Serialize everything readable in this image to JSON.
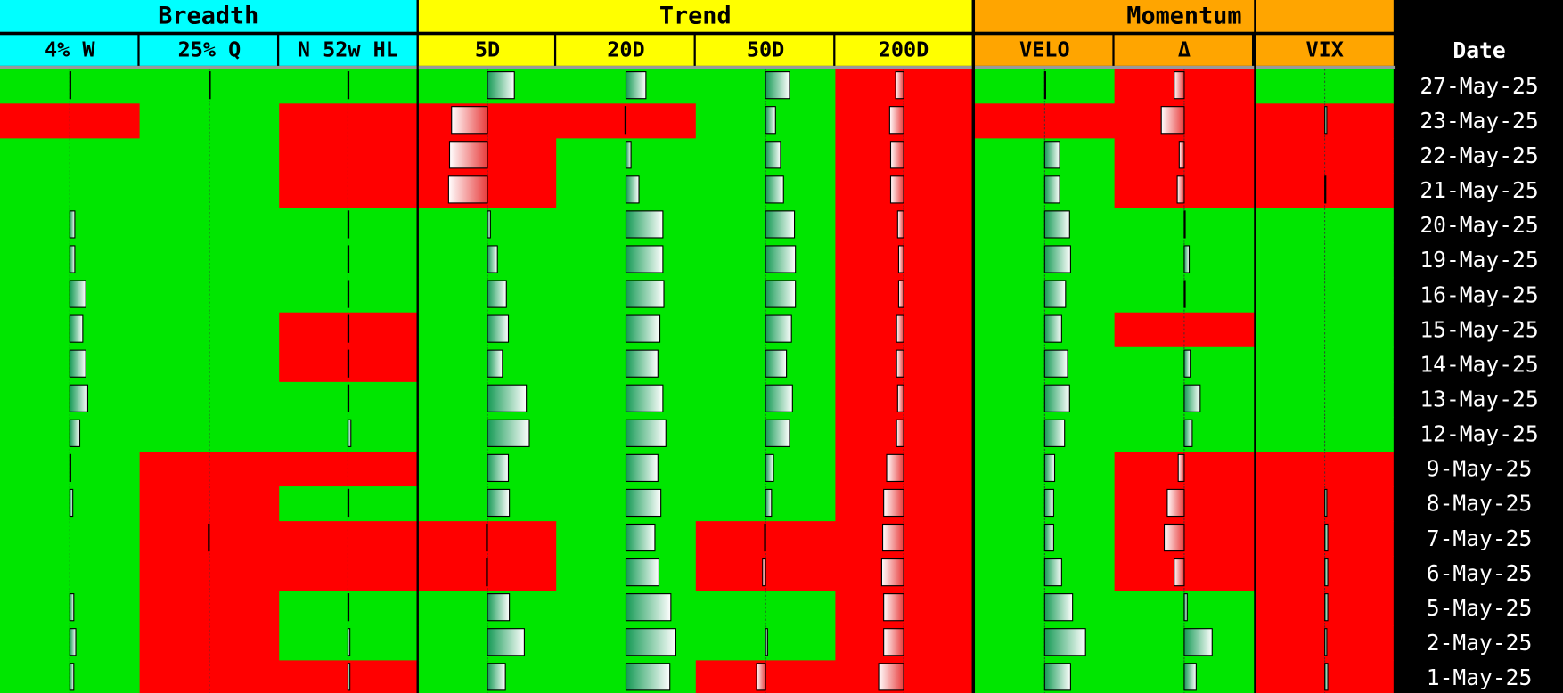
{
  "header": {
    "groups": [
      {
        "label": "Breadth",
        "color": "#00ffff",
        "columns": [
          "4% W",
          "25% Q",
          "N 52w HL"
        ]
      },
      {
        "label": "Trend",
        "color": "#ffff00",
        "columns": [
          "5D",
          "20D",
          "50D",
          "200D"
        ]
      },
      {
        "label": "Momentum",
        "color": "#ffa500",
        "columns": [
          "VELO",
          "Δ",
          "VIX"
        ]
      }
    ],
    "date_label": "Date"
  },
  "palette": {
    "g": "#00e600",
    "r": "#ff0000"
  },
  "rows": [
    {
      "date": "27-May-25",
      "fills": [
        "g",
        "g",
        "g",
        "g",
        "g",
        "g",
        "r",
        "g",
        "r",
        "g"
      ],
      "values": [
        1,
        1,
        1,
        27,
        20,
        24,
        -8,
        1,
        -10,
        0
      ]
    },
    {
      "date": "23-May-25",
      "fills": [
        "r",
        "g",
        "r",
        "r",
        "r",
        "g",
        "r",
        "r",
        "r",
        "r"
      ],
      "values": [
        0,
        0,
        0,
        -36,
        -1,
        10,
        -14,
        0,
        -23,
        2
      ]
    },
    {
      "date": "22-May-25",
      "fills": [
        "g",
        "g",
        "r",
        "r",
        "g",
        "g",
        "r",
        "g",
        "r",
        "r"
      ],
      "values": [
        0,
        0,
        0,
        -38,
        5,
        15,
        -13,
        15,
        -5,
        0
      ]
    },
    {
      "date": "21-May-25",
      "fills": [
        "g",
        "g",
        "r",
        "r",
        "g",
        "g",
        "r",
        "g",
        "r",
        "r"
      ],
      "values": [
        0,
        0,
        0,
        -39,
        13,
        18,
        -13,
        15,
        -7,
        1
      ]
    },
    {
      "date": "20-May-25",
      "fills": [
        "g",
        "g",
        "g",
        "g",
        "g",
        "g",
        "r",
        "g",
        "g",
        "g"
      ],
      "values": [
        5,
        0,
        1,
        3,
        37,
        29,
        -6,
        25,
        1,
        0
      ]
    },
    {
      "date": "19-May-25",
      "fills": [
        "g",
        "g",
        "g",
        "g",
        "g",
        "g",
        "r",
        "g",
        "g",
        "g"
      ],
      "values": [
        5,
        0,
        1,
        10,
        37,
        30,
        -5,
        26,
        5,
        0
      ]
    },
    {
      "date": "16-May-25",
      "fills": [
        "g",
        "g",
        "g",
        "g",
        "g",
        "g",
        "r",
        "g",
        "g",
        "g"
      ],
      "values": [
        16,
        0,
        1,
        19,
        38,
        30,
        -5,
        21,
        1,
        0
      ]
    },
    {
      "date": "15-May-25",
      "fills": [
        "g",
        "g",
        "r",
        "g",
        "g",
        "g",
        "r",
        "g",
        "r",
        "g"
      ],
      "values": [
        13,
        0,
        1,
        21,
        34,
        26,
        -7,
        17,
        0,
        0
      ]
    },
    {
      "date": "14-May-25",
      "fills": [
        "g",
        "g",
        "r",
        "g",
        "g",
        "g",
        "r",
        "g",
        "g",
        "g"
      ],
      "values": [
        16,
        0,
        1,
        15,
        32,
        21,
        -7,
        23,
        6,
        0
      ]
    },
    {
      "date": "13-May-25",
      "fills": [
        "g",
        "g",
        "g",
        "g",
        "g",
        "g",
        "r",
        "g",
        "g",
        "g"
      ],
      "values": [
        18,
        0,
        1,
        39,
        37,
        27,
        -6,
        25,
        16,
        0
      ]
    },
    {
      "date": "12-May-25",
      "fills": [
        "g",
        "g",
        "g",
        "g",
        "g",
        "g",
        "r",
        "g",
        "g",
        "g"
      ],
      "values": [
        10,
        0,
        3,
        42,
        40,
        24,
        -7,
        20,
        8,
        0
      ]
    },
    {
      "date": "9-May-25",
      "fills": [
        "g",
        "r",
        "r",
        "g",
        "g",
        "g",
        "r",
        "g",
        "r",
        "r"
      ],
      "values": [
        1,
        0,
        0,
        21,
        32,
        8,
        -17,
        10,
        -6,
        0
      ]
    },
    {
      "date": "8-May-25",
      "fills": [
        "g",
        "r",
        "g",
        "g",
        "g",
        "g",
        "r",
        "g",
        "r",
        "r"
      ],
      "values": [
        3,
        0,
        1,
        22,
        35,
        6,
        -20,
        9,
        -17,
        2
      ]
    },
    {
      "date": "7-May-25",
      "fills": [
        "g",
        "r",
        "r",
        "r",
        "g",
        "r",
        "r",
        "g",
        "r",
        "r"
      ],
      "values": [
        0,
        -1,
        0,
        -1,
        29,
        -1,
        -21,
        9,
        -20,
        3
      ]
    },
    {
      "date": "6-May-25",
      "fills": [
        "g",
        "r",
        "r",
        "r",
        "g",
        "r",
        "r",
        "g",
        "r",
        "r"
      ],
      "values": [
        0,
        0,
        0,
        -1,
        33,
        -3,
        -22,
        17,
        -10,
        3
      ]
    },
    {
      "date": "5-May-25",
      "fills": [
        "g",
        "r",
        "g",
        "g",
        "g",
        "g",
        "r",
        "g",
        "g",
        "r"
      ],
      "values": [
        4,
        0,
        1,
        22,
        45,
        0,
        -20,
        28,
        3,
        3
      ]
    },
    {
      "date": "2-May-25",
      "fills": [
        "g",
        "r",
        "g",
        "g",
        "g",
        "g",
        "r",
        "g",
        "g",
        "r"
      ],
      "values": [
        6,
        0,
        2,
        37,
        50,
        2,
        -20,
        41,
        28,
        2
      ]
    },
    {
      "date": "1-May-25",
      "fills": [
        "g",
        "r",
        "r",
        "g",
        "g",
        "r",
        "r",
        "g",
        "g",
        "r"
      ],
      "values": [
        4,
        0,
        2,
        18,
        44,
        -9,
        -25,
        26,
        12,
        3
      ]
    }
  ]
}
